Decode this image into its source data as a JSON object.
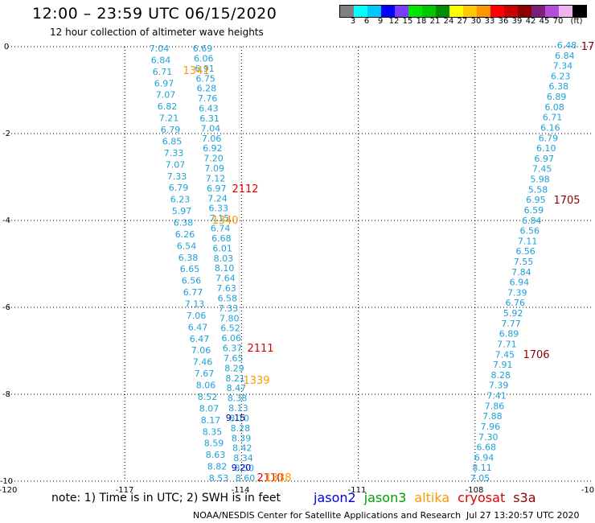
{
  "header": {
    "title": "12:00 – 23:59 UTC 06/15/2020",
    "subtitle": "12 hour collection of altimeter wave heights"
  },
  "colorbar": {
    "colors": [
      "#808080",
      "#00ffff",
      "#00c8ff",
      "#0000ff",
      "#7a3cff",
      "#00e600",
      "#00c800",
      "#008c00",
      "#ffff00",
      "#ffc800",
      "#ff9600",
      "#ff0000",
      "#c80000",
      "#8c0000",
      "#7a1f7a",
      "#b44cdc",
      "#eeb4ee",
      "#000000"
    ],
    "labels": [
      "3",
      "6",
      "9",
      "12",
      "15",
      "18",
      "21",
      "24",
      "27",
      "30",
      "33",
      "36",
      "39",
      "42",
      "45",
      "70",
      "(ft)"
    ]
  },
  "axes": {
    "x_ticks": [
      "-120",
      "-117",
      "-114",
      "-111",
      "-108",
      "-10"
    ],
    "y_ticks": [
      "0",
      "-2",
      "-4",
      "-6",
      "-8",
      "-10"
    ]
  },
  "chart_data": {
    "type": "scatter",
    "x_range": [
      -120,
      -105
    ],
    "y_range": [
      -10,
      0
    ],
    "tracks": [
      {
        "color": "#1ea0d8",
        "x": -115.6,
        "values": [
          "7.04",
          "6.84",
          "6.71",
          "6.97",
          "7.07",
          "6.82",
          "7.21",
          "6.79",
          "6.85",
          "7.33",
          "7.07",
          "7.33",
          "6.79",
          "6.23",
          "5.97",
          "6.38",
          "6.26",
          "6.54",
          "6.38",
          "6.65",
          "6.56",
          "6.77",
          "7.13",
          "7.06",
          "6.47",
          "6.47",
          "7.06",
          "7.46",
          "7.67",
          "8.06",
          "8.52",
          "8.07",
          "8.17",
          "8.35",
          "8.59",
          "8.63",
          "8.82",
          "8.53"
        ]
      },
      {
        "color": "#1ea0d8",
        "x": -114.7,
        "values": [
          "6.69",
          "6.06",
          "6.91",
          "6.75",
          "6.28",
          "7.76",
          "6.43",
          "6.31",
          "7.04",
          "7.06",
          "6.92",
          "7.20",
          "7.09",
          "7.12",
          "6.97",
          "7.24",
          "6.33",
          "7.15",
          "6.74",
          "6.68",
          "6.01",
          "8.03",
          "8.10",
          "7.64",
          "7.63",
          "6.58",
          "7.33",
          "7.80",
          "6.52",
          "6.06",
          "6.37",
          "7.65",
          "8.29",
          "8.21",
          "8.47",
          "8.38",
          "8.13",
          "8.10",
          "8.28",
          "8.39",
          "8.42",
          "8.34",
          "8.50",
          "8.60"
        ]
      },
      {
        "color": "#1ea0d8",
        "x": -108.0,
        "values": [
          "6.48",
          "6.84",
          "7.34",
          "6.23",
          "6.38",
          "6.89",
          "6.08",
          "6.71",
          "6.16",
          "6.79",
          "6.10",
          "6.97",
          "7.45",
          "5.98",
          "5.58",
          "6.95",
          "6.59",
          "6.84",
          "6.56",
          "7.11",
          "6.56",
          "7.55",
          "7.84",
          "6.94",
          "7.39",
          "6.76",
          "5.92",
          "7.77",
          "6.89",
          "7.71",
          "7.45",
          "7.91",
          "8.28",
          "7.39",
          "7.41",
          "7.86",
          "7.88",
          "7.96",
          "7.30",
          "6.68",
          "6.94",
          "8.11",
          "7.05"
        ]
      }
    ],
    "highlighted_values": [
      {
        "text": "9.15",
        "color": "#000080"
      },
      {
        "text": "9.20",
        "color": "#0000e0"
      }
    ],
    "time_labels": [
      {
        "text": "1341",
        "color": "#ff9600"
      },
      {
        "text": "2112",
        "color": "#e00000"
      },
      {
        "text": "1340",
        "color": "#ff9600"
      },
      {
        "text": "2111",
        "color": "#e00000"
      },
      {
        "text": "1339",
        "color": "#ff9600"
      },
      {
        "text": "2110",
        "color": "#e00000"
      },
      {
        "text": "1338",
        "color": "#ff9600"
      },
      {
        "text": "1705",
        "color": "#8c0000"
      },
      {
        "text": "1706",
        "color": "#8c0000"
      },
      {
        "text": "17",
        "color": "#8c0000"
      }
    ]
  },
  "footer": {
    "note": "note:  1) Time is in UTC;  2) SWH is in feet",
    "legend": [
      {
        "label": "jason2",
        "color": "#0000e6"
      },
      {
        "label": "jason3",
        "color": "#00a000"
      },
      {
        "label": "altika",
        "color": "#ff9600"
      },
      {
        "label": "cryosat",
        "color": "#e00000"
      },
      {
        "label": "s3a",
        "color": "#8c0000"
      }
    ],
    "credit": "NOAA/NESDIS Center for Satellite Applications and Research",
    "timestamp": "Jul 27 13:20:57 UTC 2020"
  }
}
